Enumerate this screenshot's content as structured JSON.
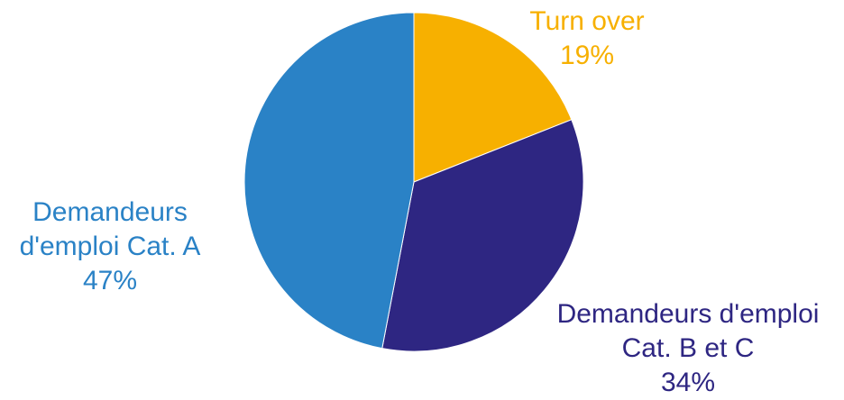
{
  "chart_data": {
    "type": "pie",
    "slices": [
      {
        "label_lines": [
          "Turn over"
        ],
        "value": 19,
        "value_label": "19%",
        "color": "#f7b000"
      },
      {
        "label_lines": [
          "Demandeurs d'emploi",
          "Cat. B et C"
        ],
        "value": 34,
        "value_label": "34%",
        "color": "#2e2682"
      },
      {
        "label_lines": [
          "Demandeurs",
          "d'emploi Cat. A"
        ],
        "value": 47,
        "value_label": "47%",
        "color": "#2a82c6"
      }
    ],
    "start_angle": "12 o'clock",
    "direction": "clockwise",
    "legend": "none"
  }
}
